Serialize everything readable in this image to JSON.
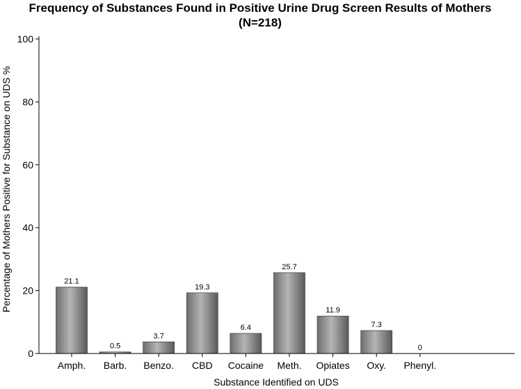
{
  "chart_data": {
    "type": "bar",
    "title": "Frequency of Substances Found in Positive Urine Drug Screen Results of Mothers",
    "subtitle": "(N=218)",
    "xlabel": "Substance Identified on UDS",
    "ylabel": "Percentage of Mothers Positive for Substance on UDS %",
    "categories": [
      "Amph.",
      "Barb.",
      "Benzo.",
      "CBD",
      "Cocaine",
      "Meth.",
      "Opiates",
      "Oxy.",
      "Phenyl."
    ],
    "values": [
      21.1,
      0.5,
      3.7,
      19.3,
      6.4,
      25.7,
      11.9,
      7.3,
      0
    ],
    "value_labels": [
      "21.1",
      "0.5",
      "3.7",
      "19.3",
      "6.4",
      "25.7",
      "11.9",
      "7.3",
      "0"
    ],
    "ylim": [
      0,
      100
    ],
    "yticks": [
      "0",
      "20",
      "40",
      "60",
      "80",
      "100"
    ],
    "grid": false,
    "bar_color": "#8c8c8c"
  }
}
